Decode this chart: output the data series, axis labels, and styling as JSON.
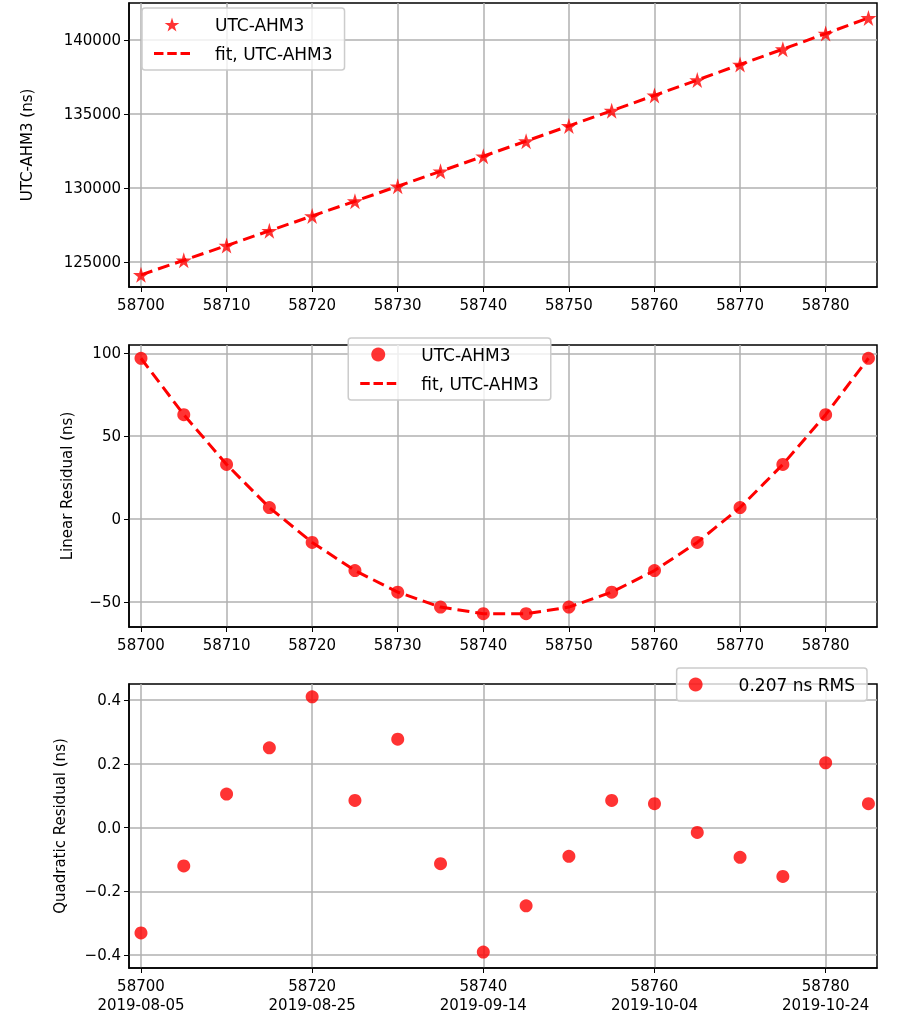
{
  "chart_data": [
    {
      "type": "line",
      "ylabel": "UTC-AHM3 (ns)",
      "x": [
        58700,
        58705,
        58710,
        58715,
        58720,
        58725,
        58730,
        58735,
        58740,
        58745,
        58750,
        58755,
        58760,
        58765,
        58770,
        58775,
        58780,
        58785
      ],
      "xlim": [
        58698.6,
        58786
      ],
      "xticks": [
        58700,
        58710,
        58720,
        58730,
        58740,
        58750,
        58760,
        58770,
        58780
      ],
      "ylim": [
        123300,
        142500
      ],
      "yticks": [
        125000,
        130000,
        135000,
        140000
      ],
      "grid": true,
      "legend": "top left",
      "series": [
        {
          "name": "UTC-AHM3",
          "type": "scatter",
          "marker": "star",
          "color": "#ff0000",
          "values": [
            124120,
            125110,
            126100,
            127100,
            128100,
            129100,
            130110,
            131120,
            132140,
            133160,
            134190,
            135220,
            136250,
            137290,
            138340,
            139380,
            140430,
            141490
          ]
        },
        {
          "name": "fit, UTC-AHM3",
          "marker": "none",
          "line_style": "dashed",
          "color": "#ff0000",
          "values": [
            124120,
            125110,
            126100,
            127100,
            128100,
            129100,
            130110,
            131120,
            132140,
            133160,
            134190,
            135220,
            136250,
            137290,
            138340,
            139380,
            140430,
            141490
          ]
        }
      ]
    },
    {
      "type": "line",
      "ylabel": "Linear Residual (ns)",
      "x": [
        58700,
        58705,
        58710,
        58715,
        58720,
        58725,
        58730,
        58735,
        58740,
        58745,
        58750,
        58755,
        58760,
        58765,
        58770,
        58775,
        58780,
        58785
      ],
      "xlim": [
        58698.6,
        58786
      ],
      "xticks": [
        58700,
        58710,
        58720,
        58730,
        58740,
        58750,
        58760,
        58770,
        58780
      ],
      "ylim": [
        -65,
        105
      ],
      "yticks": [
        {
          "value": -50,
          "label": "−50"
        },
        0,
        50,
        100
      ],
      "grid": true,
      "legend": "top",
      "series": [
        {
          "name": "UTC-AHM3",
          "type": "scatter",
          "marker": "circle",
          "color": "#ff0000",
          "values": [
            97,
            63,
            33,
            7,
            -14,
            -31,
            -44,
            -53,
            -57,
            -57,
            -53,
            -44,
            -31,
            -14,
            7,
            33,
            63,
            97
          ]
        },
        {
          "name": "fit, UTC-AHM3",
          "marker": "none",
          "line_style": "dashed",
          "color": "#ff0000",
          "values": [
            97,
            63,
            33,
            7,
            -14,
            -31,
            -44,
            -53,
            -57,
            -57,
            -53,
            -44,
            -31,
            -14,
            7,
            33,
            63,
            97
          ]
        }
      ]
    },
    {
      "type": "scatter",
      "ylabel": "Quadratic Residual (ns)",
      "x": [
        58700,
        58705,
        58710,
        58715,
        58720,
        58725,
        58730,
        58735,
        58740,
        58745,
        58750,
        58755,
        58760,
        58765,
        58770,
        58775,
        58780,
        58785
      ],
      "xlim": [
        58698.6,
        58786
      ],
      "xticks": [
        58700,
        58720,
        58740,
        58760,
        58780
      ],
      "x2lim": [
        "2019-08-03T14:24",
        "2019-10-30"
      ],
      "x2ticks": [
        "2019-08-05",
        "2019-08-25",
        "2019-09-14",
        "2019-10-04",
        "2019-10-24"
      ],
      "ylim": [
        -0.44,
        0.45
      ],
      "yticks": [
        {
          "value": -0.4,
          "label": "−0.4"
        },
        {
          "value": -0.2,
          "label": "−0.2"
        },
        {
          "value": 0,
          "label": "0.0"
        },
        0.2,
        0.4
      ],
      "grid": true,
      "legend": "top right",
      "series": [
        {
          "name": "0.207 ns RMS",
          "marker": "circle",
          "color": "#ff0000",
          "values": [
            -0.33,
            -0.12,
            0.105,
            0.25,
            0.41,
            0.085,
            0.277,
            -0.113,
            -0.39,
            -0.245,
            -0.09,
            0.085,
            0.075,
            -0.015,
            -0.093,
            -0.153,
            0.203,
            0.075
          ]
        }
      ]
    }
  ]
}
